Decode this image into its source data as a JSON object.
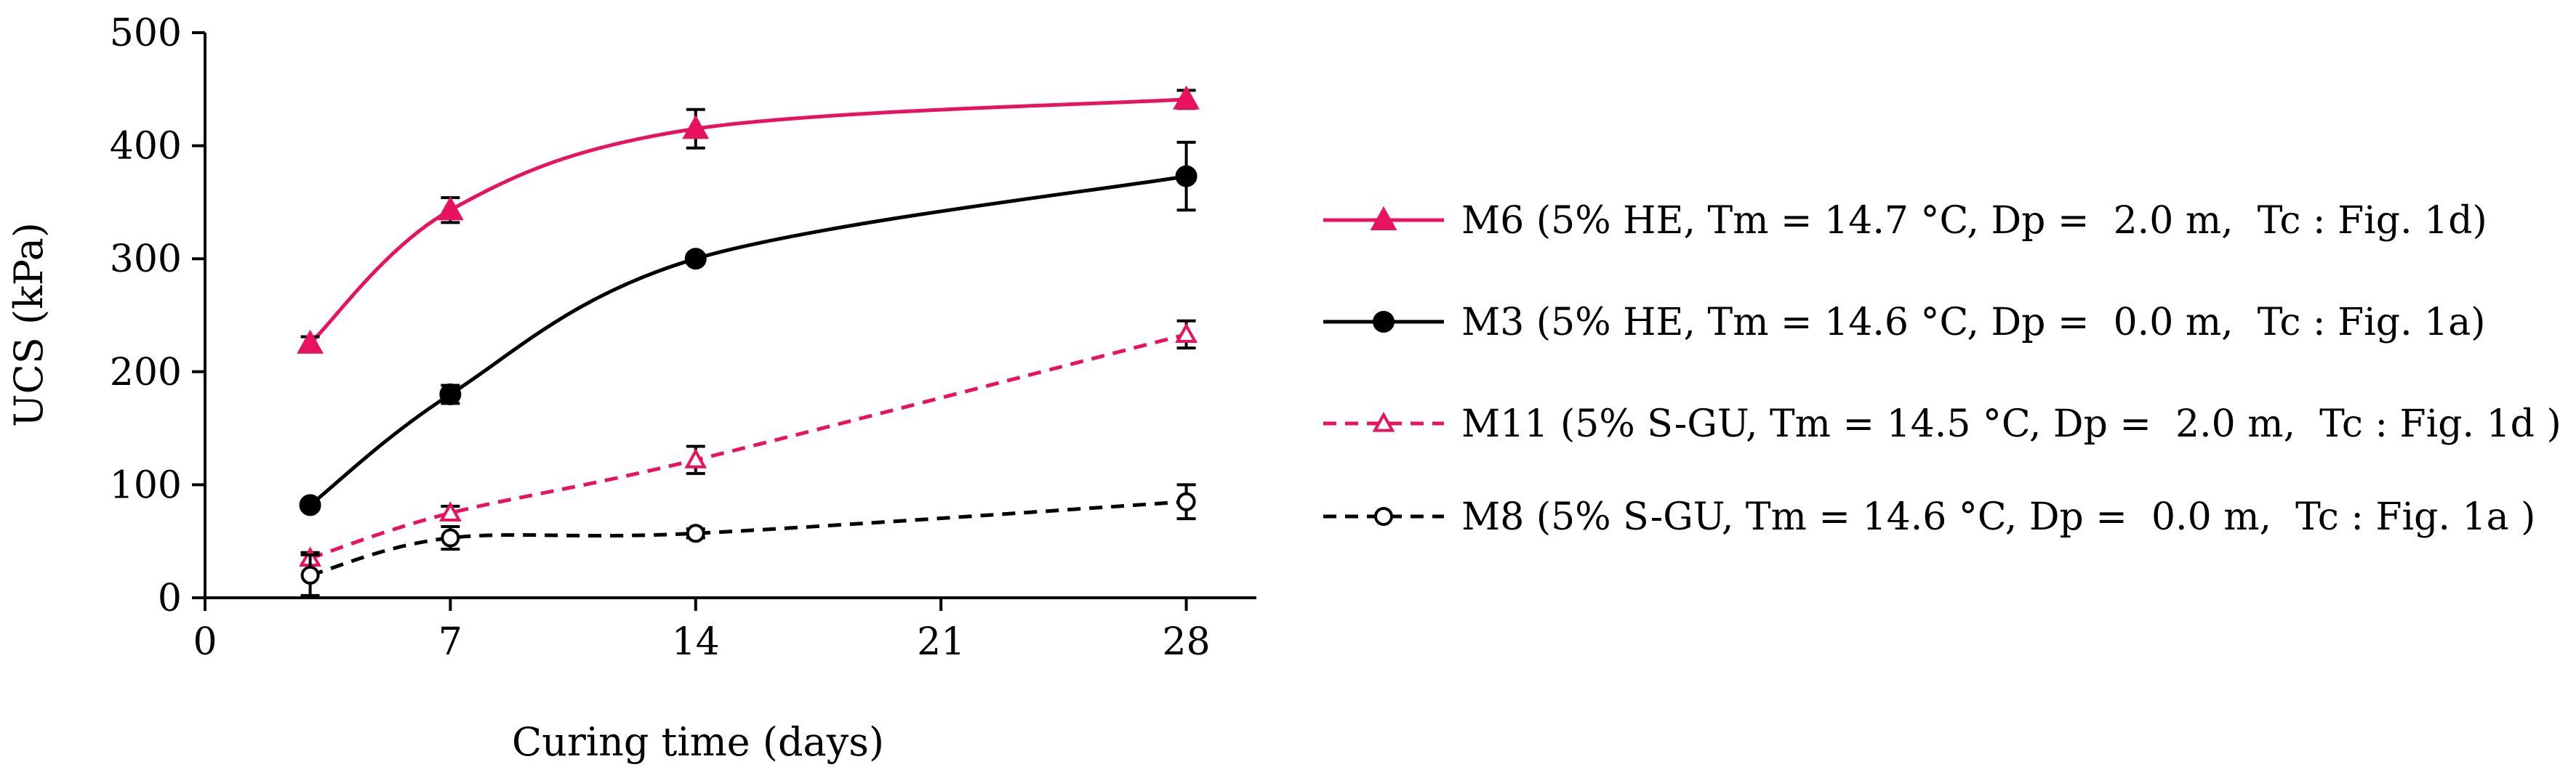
{
  "chart_data": {
    "type": "line",
    "xlabel": "Curing time (days)",
    "ylabel": "UCS (kPa)",
    "xlim": [
      0,
      30
    ],
    "ylim": [
      0,
      500
    ],
    "xticks": [
      0,
      7,
      14,
      21,
      28
    ],
    "yticks": [
      0,
      100,
      200,
      300,
      400,
      500
    ],
    "grid": false,
    "legend_position": "right",
    "x": [
      3,
      7,
      14,
      28
    ],
    "series": [
      {
        "name": "M6 (5% HE, Tm = 14.7 °C, Dp =  2.0 m,  Tc : Fig. 1d)",
        "values": [
          225,
          343,
          415,
          441
        ],
        "errors": [
          6,
          11,
          17,
          8
        ],
        "color": "#e8125f",
        "line_style": "solid",
        "marker": "triangle-filled"
      },
      {
        "name": "M3 (5% HE, Tm = 14.6 °C, Dp =  0.0 m,  Tc : Fig. 1a)",
        "values": [
          82,
          180,
          300,
          373
        ],
        "errors": [
          4,
          8,
          4,
          30
        ],
        "color": "#000000",
        "line_style": "solid",
        "marker": "circle-filled"
      },
      {
        "name": "M11 (5% S-GU, Tm = 14.5 °C, Dp =  2.0 m,  Tc : Fig. 1d )",
        "values": [
          35,
          75,
          122,
          233
        ],
        "errors": [
          5,
          6,
          12,
          12
        ],
        "color": "#e8125f",
        "line_style": "dashed",
        "marker": "triangle-open"
      },
      {
        "name": "M8 (5% S-GU, Tm = 14.6 °C, Dp =  0.0 m,  Tc : Fig. 1a )",
        "values": [
          20,
          53,
          57,
          85
        ],
        "errors": [
          18,
          10,
          4,
          15
        ],
        "color": "#000000",
        "line_style": "dashed",
        "marker": "circle-open"
      }
    ]
  }
}
